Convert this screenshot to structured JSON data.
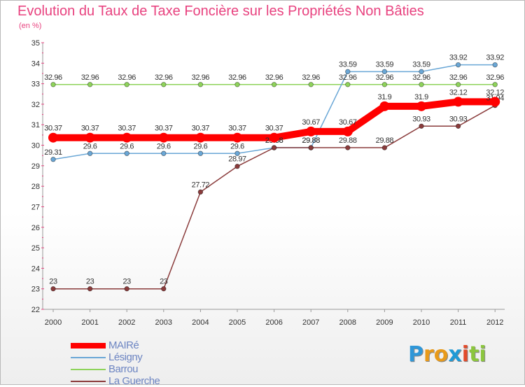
{
  "header": {
    "title": "Evolution du Taux de Taxe Foncière sur les Propriétés Non Bâties",
    "subtitle": "(en %)"
  },
  "logo": {
    "text": "Proxiti",
    "letters": [
      {
        "ch": "P",
        "color": "#2f97d8"
      },
      {
        "ch": "r",
        "color": "#e89a1a"
      },
      {
        "ch": "o",
        "color": "#e89a1a"
      },
      {
        "ch": "x",
        "color": "#1f9ad6"
      },
      {
        "ch": "i",
        "color": "#e24a2a"
      },
      {
        "ch": "t",
        "color": "#8cc63e"
      },
      {
        "ch": "i",
        "color": "#8cc63e"
      }
    ]
  },
  "chart_data": {
    "type": "line",
    "title": "Evolution du Taux de Taxe Foncière sur les Propriétés Non Bâties",
    "ylabel": "(en %)",
    "xlabel": "",
    "x": [
      "2000",
      "2001",
      "2002",
      "2003",
      "2004",
      "2005",
      "2006",
      "2007",
      "2008",
      "2009",
      "2010",
      "2011",
      "2012"
    ],
    "ylim": [
      22,
      35
    ],
    "yticks": [
      "22",
      "23",
      "24",
      "25",
      "26",
      "27",
      "28",
      "29",
      "30",
      "31",
      "32",
      "33",
      "34",
      "35"
    ],
    "grid": false,
    "legend_position": "bottom-left",
    "series": [
      {
        "name": "Barrou",
        "color": "#8ed35a",
        "values": [
          32.96,
          32.96,
          32.96,
          32.96,
          32.96,
          32.96,
          32.96,
          32.96,
          32.96,
          32.96,
          32.96,
          32.96,
          32.96
        ],
        "labels": [
          "32.96",
          "32.96",
          "32.96",
          "32.96",
          "32.96",
          "32.96",
          "32.96",
          "32.96",
          "32.96",
          "32.96",
          "32.96",
          "32.96",
          "32.96"
        ]
      },
      {
        "name": "Lésigny",
        "color": "#6aa7d6",
        "values": [
          29.31,
          29.6,
          29.6,
          29.6,
          29.6,
          29.6,
          29.88,
          29.88,
          33.59,
          33.59,
          33.59,
          33.92,
          33.92
        ],
        "labels": [
          "29.31",
          "29.6",
          "29.6",
          "29.6",
          "29.6",
          "29.6",
          "29.88",
          "29.88",
          "33.59",
          "33.59",
          "33.59",
          "33.92",
          "33.92"
        ]
      },
      {
        "name": "La Guerche",
        "color": "#8a3b3b",
        "values": [
          23,
          23,
          23,
          23,
          27.72,
          28.97,
          29.88,
          29.88,
          29.88,
          29.88,
          30.93,
          30.93,
          31.94
        ],
        "labels": [
          "23",
          "23",
          "23",
          "23",
          "27.72",
          "28.97",
          "29.88",
          "29.88",
          "29.88",
          "29.88",
          "30.93",
          "30.93",
          "31.94"
        ]
      },
      {
        "name": "MAIRé",
        "color": "#ff0000",
        "values": [
          30.37,
          30.37,
          30.37,
          30.37,
          30.37,
          30.37,
          30.37,
          30.67,
          30.67,
          31.9,
          31.9,
          32.12,
          32.12
        ],
        "labels": [
          "30.37",
          "30.37",
          "30.37",
          "30.37",
          "30.37",
          "30.37",
          "30.37",
          "30.67",
          "30.67",
          "31.9",
          "31.9",
          "32.12",
          "32.12"
        ]
      }
    ],
    "legend": [
      {
        "name": "MAIRé",
        "color": "#ff0000"
      },
      {
        "name": "Lésigny",
        "color": "#6aa7d6"
      },
      {
        "name": "Barrou",
        "color": "#8ed35a"
      },
      {
        "name": "La Guerche",
        "color": "#8a3b3b"
      }
    ]
  }
}
